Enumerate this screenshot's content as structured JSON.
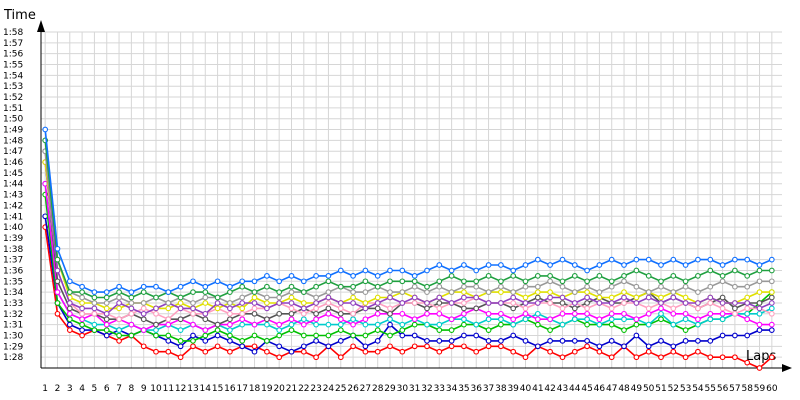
{
  "chart_data": {
    "type": "line",
    "title": "",
    "xlabel": "Laps",
    "ylabel": "Time",
    "grid": true,
    "legend": "none",
    "x": [
      1,
      2,
      3,
      4,
      5,
      6,
      7,
      8,
      9,
      10,
      11,
      12,
      13,
      14,
      15,
      16,
      17,
      18,
      19,
      20,
      21,
      22,
      23,
      24,
      25,
      26,
      27,
      28,
      29,
      30,
      31,
      32,
      33,
      34,
      35,
      36,
      37,
      38,
      39,
      40,
      41,
      42,
      43,
      44,
      45,
      46,
      47,
      48,
      49,
      50,
      51,
      52,
      53,
      54,
      55,
      56,
      57,
      58,
      59,
      60
    ],
    "xtick_labels": [
      "1",
      "2",
      "3",
      "4",
      "5",
      "6",
      "7",
      "8",
      "9",
      "10",
      "11",
      "12",
      "13",
      "14",
      "15",
      "16",
      "17",
      "18",
      "19",
      "20",
      "21",
      "22",
      "23",
      "24",
      "25",
      "26",
      "27",
      "28",
      "29",
      "30",
      "31",
      "32",
      "33",
      "34",
      "35",
      "36",
      "37",
      "38",
      "39",
      "40",
      "41",
      "42",
      "43",
      "44",
      "45",
      "46",
      "47",
      "48",
      "49",
      "50",
      "51",
      "52",
      "53",
      "54",
      "55",
      "56",
      "57",
      "58",
      "59",
      "60"
    ],
    "ytick_labels": [
      "1:28",
      "1:29",
      "1:30",
      "1:31",
      "1:32",
      "1:33",
      "1:34",
      "1:35",
      "1:36",
      "1:37",
      "1:38",
      "1:39",
      "1:40",
      "1:41",
      "1:42",
      "1:43",
      "1:44",
      "1:45",
      "1:46",
      "1:47",
      "1:48",
      "1:49",
      "1:50",
      "1:51",
      "1:52",
      "1:53",
      "1:54",
      "1:55",
      "1:56",
      "1:57",
      "1:58"
    ],
    "ylim_seconds": [
      87,
      118
    ],
    "series": [
      {
        "color": "#ff0000",
        "values": [
          100,
          92,
          90.5,
          90,
          90.5,
          90,
          89.5,
          90,
          89,
          88.5,
          88.5,
          88,
          89,
          88.5,
          89,
          88.5,
          89,
          89,
          88.5,
          88,
          88.5,
          88.5,
          88,
          89,
          88,
          89,
          88.5,
          88.5,
          89,
          88.5,
          89,
          89,
          88.5,
          89,
          89,
          88.5,
          89,
          89,
          88.5,
          88,
          89,
          88.5,
          88,
          88.5,
          89,
          88.5,
          88,
          89,
          88,
          88.5,
          88,
          88.5,
          88,
          88.5,
          88,
          88,
          88,
          87.5,
          87,
          88
        ]
      },
      {
        "color": "#0000cc",
        "values": [
          101,
          93,
          91,
          90.5,
          90.5,
          90,
          90.5,
          90,
          90.5,
          90,
          89.5,
          89,
          90,
          89.5,
          90,
          89.5,
          89,
          88.5,
          89.5,
          89,
          88.5,
          89,
          89.5,
          89,
          89.5,
          90,
          89,
          89.5,
          91,
          90,
          90,
          89.5,
          89.5,
          89.5,
          90,
          90,
          89.5,
          89.5,
          90,
          89.5,
          89,
          89.5,
          89.5,
          89.5,
          89.5,
          89,
          89.5,
          89,
          90,
          89,
          89.5,
          89,
          89.5,
          89.5,
          89.5,
          90,
          90,
          90,
          90.5,
          90.5
        ]
      },
      {
        "color": "#00c000",
        "values": [
          103,
          93,
          91.5,
          91,
          90.5,
          90.5,
          90,
          90,
          90.5,
          90,
          90,
          89.5,
          89.5,
          90,
          90.5,
          90,
          89.5,
          90,
          89.5,
          90,
          90.5,
          90,
          90,
          90,
          90.5,
          90,
          90,
          90.5,
          90,
          90.5,
          91,
          91,
          90.5,
          90.5,
          91,
          91,
          90.5,
          91,
          91,
          91.5,
          91,
          90.5,
          91,
          91.5,
          91,
          91,
          91,
          90.5,
          91,
          91,
          91.5,
          91,
          90.5,
          91,
          91.5,
          91.5,
          92,
          92,
          93,
          94
        ]
      },
      {
        "color": "#00cccc",
        "values": [
          104,
          94,
          92,
          91.5,
          91,
          91,
          90.5,
          91,
          90.5,
          90.5,
          91,
          90.5,
          91,
          90.5,
          91,
          90.5,
          91,
          91,
          91,
          90.5,
          91,
          91.5,
          91,
          91,
          91,
          91.5,
          91,
          91,
          91.5,
          91,
          91.5,
          91,
          91,
          91.5,
          91.5,
          91,
          91.5,
          91.5,
          91,
          91.5,
          92,
          91.5,
          91,
          91.5,
          91.5,
          91,
          91.5,
          91.5,
          91.5,
          91,
          92,
          91,
          91.5,
          91,
          91.5,
          91.5,
          92,
          92,
          92,
          92.5
        ]
      },
      {
        "color": "#ff00ff",
        "values": [
          104,
          94,
          92,
          91.5,
          92,
          91,
          91.5,
          91,
          90.5,
          91,
          91,
          91.5,
          91,
          90.5,
          91,
          91,
          91.5,
          91,
          91.5,
          91,
          91.5,
          91,
          91.5,
          92,
          91.5,
          91,
          91.5,
          92,
          92,
          92,
          91.5,
          92,
          92,
          91.5,
          92,
          92.5,
          92,
          92,
          91.5,
          92,
          91.5,
          91.5,
          92,
          92,
          92,
          91.5,
          92,
          92,
          91.5,
          92,
          92.5,
          92,
          92,
          91.5,
          92,
          92,
          92,
          91.5,
          91,
          91
        ]
      },
      {
        "color": "#555555",
        "values": [
          106,
          95,
          92.5,
          92,
          92,
          91.5,
          91.5,
          92,
          91.5,
          91,
          91.5,
          91.5,
          92,
          91.5,
          91,
          91.5,
          92,
          92,
          91.5,
          92,
          92,
          92.5,
          92,
          92.5,
          92,
          92,
          92.5,
          92.5,
          92,
          93,
          93,
          92.5,
          93,
          93,
          92.5,
          92.5,
          93,
          93,
          92.5,
          93,
          93.5,
          93,
          93,
          92.5,
          93,
          93.5,
          93,
          93,
          93.5,
          94,
          93,
          93.5,
          93,
          92.5,
          93,
          93.5,
          92.5,
          93,
          93,
          93.5
        ]
      },
      {
        "color": "#ffa0c0",
        "values": [
          106,
          96,
          93,
          92,
          92,
          92,
          91.5,
          92,
          92.5,
          92,
          91.5,
          92.5,
          92,
          92,
          92.5,
          92,
          92,
          92.5,
          92.5,
          93,
          92.5,
          92,
          92.5,
          93,
          92.5,
          92,
          93,
          93,
          92.5,
          93,
          93,
          93,
          92.5,
          93,
          93,
          93.5,
          93,
          93,
          93,
          92.5,
          93,
          93,
          92.5,
          93,
          92.5,
          93,
          92.5,
          93,
          93,
          92.5,
          93,
          92.5,
          93,
          92.5,
          93,
          92.5,
          92,
          92.5,
          92.5,
          92
        ]
      },
      {
        "color": "#e0e000",
        "values": [
          106,
          97,
          93.5,
          93,
          93,
          92.5,
          92.5,
          93,
          93,
          92.5,
          92.5,
          93,
          92.5,
          93,
          92.5,
          93,
          92.5,
          93.5,
          93,
          93,
          93.5,
          93,
          93,
          93.5,
          93,
          93.5,
          93,
          93.5,
          93.5,
          94,
          93.5,
          93,
          93.5,
          94,
          94,
          93.5,
          94,
          94,
          94,
          93.5,
          94,
          94,
          93.5,
          94,
          94,
          93.5,
          93.5,
          94,
          93.5,
          94,
          93.5,
          94,
          93.5,
          93,
          93.5,
          93,
          93,
          93.5,
          94,
          94
        ]
      },
      {
        "color": "#9040c0",
        "values": [
          107,
          96,
          93,
          92.5,
          92.5,
          92,
          93,
          92.5,
          92,
          92.5,
          93,
          92.5,
          92.5,
          92,
          93,
          92.5,
          93,
          93,
          92.5,
          93,
          93,
          92.5,
          93,
          93.5,
          93,
          93,
          92.5,
          93,
          93.5,
          93,
          93.5,
          93,
          93.5,
          93,
          93.5,
          93.5,
          93,
          93,
          93.5,
          93,
          93,
          93.5,
          93.5,
          93,
          93.5,
          93,
          93,
          93.5,
          93,
          93.5,
          93,
          93.5,
          93,
          93,
          93.5,
          93,
          93,
          93,
          92.5,
          93
        ]
      },
      {
        "color": "#999999",
        "values": [
          107,
          97,
          94,
          93.5,
          93,
          93,
          93.5,
          93,
          93,
          93.5,
          93,
          93.5,
          93,
          93.5,
          93.5,
          93,
          93.5,
          94,
          93.5,
          93.5,
          94,
          94,
          93.5,
          94,
          94.5,
          94,
          94,
          94.5,
          94,
          94,
          94.5,
          94,
          94.5,
          94,
          94.5,
          94.5,
          94,
          94.5,
          94,
          94.5,
          94.5,
          95,
          94.5,
          94,
          94.5,
          94,
          94.5,
          95,
          94.5,
          94,
          94.5,
          94,
          94.5,
          94,
          94.5,
          95,
          94.5,
          94.5,
          95,
          95
        ]
      },
      {
        "color": "#20a040",
        "values": [
          108,
          97,
          94,
          94,
          93.5,
          93.5,
          94,
          93.5,
          94,
          93.5,
          94,
          93.5,
          94,
          94,
          93.5,
          94,
          94.5,
          94,
          94.5,
          94,
          94.5,
          94,
          94.5,
          95,
          94.5,
          94.5,
          95,
          94.5,
          95,
          95,
          95,
          94.5,
          95,
          95.5,
          95,
          95,
          95.5,
          95,
          95.5,
          95,
          95.5,
          95.5,
          95,
          95.5,
          95,
          95.5,
          95,
          95.5,
          96,
          95.5,
          95,
          95.5,
          95,
          95.5,
          96,
          95.5,
          96,
          95.5,
          96,
          96
        ]
      },
      {
        "color": "#1070ff",
        "values": [
          109,
          98,
          95,
          94.5,
          94,
          94,
          94.5,
          94,
          94.5,
          94.5,
          94,
          94.5,
          95,
          94.5,
          95,
          94.5,
          95,
          95,
          95.5,
          95,
          95.5,
          95,
          95.5,
          95.5,
          96,
          95.5,
          96,
          95.5,
          96,
          96,
          95.5,
          96,
          96.5,
          96,
          96.5,
          96,
          96.5,
          96.5,
          96,
          96.5,
          97,
          96.5,
          97,
          96.5,
          96,
          96.5,
          97,
          96.5,
          97,
          97,
          96.5,
          97,
          96.5,
          97,
          97,
          96.5,
          97,
          97,
          96.5,
          97
        ]
      }
    ]
  }
}
